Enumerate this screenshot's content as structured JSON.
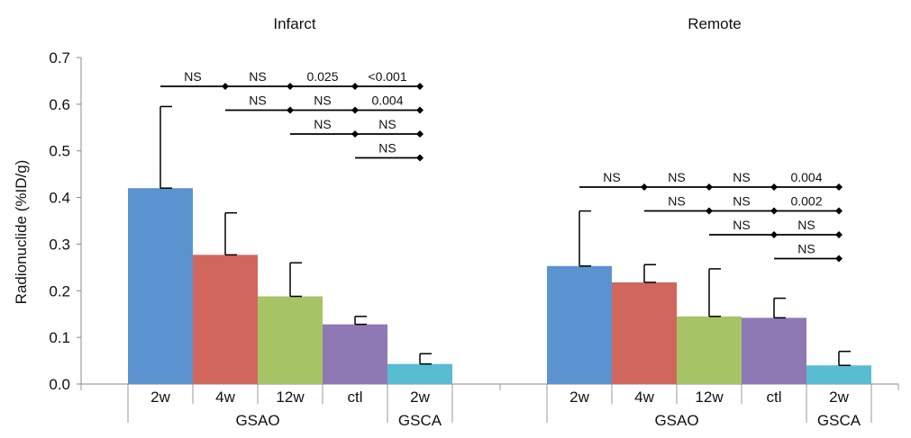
{
  "chart_data": {
    "type": "bar",
    "ylabel": "Radionuclide (%ID/g)",
    "ylim": [
      0,
      0.7
    ],
    "yticks": [
      "0.0",
      "0.1",
      "0.2",
      "0.3",
      "0.4",
      "0.5",
      "0.6",
      "0.7"
    ],
    "categories": [
      "2w",
      "4w",
      "12w",
      "ctl",
      "2w"
    ],
    "groups": [
      {
        "label": "GSAO",
        "span": [
          0,
          3
        ]
      },
      {
        "label": "GSCA",
        "span": [
          4,
          4
        ]
      }
    ],
    "bar_colors": [
      "#5b93d0",
      "#d1665c",
      "#a6c465",
      "#8f79b5",
      "#58bcd3"
    ],
    "panels": [
      {
        "title": "Infarct",
        "values": [
          0.42,
          0.277,
          0.188,
          0.128,
          0.043
        ],
        "errors": [
          0.175,
          0.09,
          0.072,
          0.017,
          0.022
        ],
        "comparisons": [
          {
            "from": 0,
            "labels": [
              "NS",
              "NS",
              "0.025",
              "<0.001"
            ]
          },
          {
            "from": 1,
            "labels": [
              "NS",
              "NS",
              "0.004"
            ]
          },
          {
            "from": 2,
            "labels": [
              "NS",
              "NS"
            ]
          },
          {
            "from": 3,
            "labels": [
              "NS"
            ]
          }
        ]
      },
      {
        "title": "Remote",
        "values": [
          0.253,
          0.218,
          0.145,
          0.142,
          0.04
        ],
        "errors": [
          0.118,
          0.038,
          0.102,
          0.042,
          0.03
        ],
        "comparisons": [
          {
            "from": 0,
            "labels": [
              "NS",
              "NS",
              "NS",
              "0.004"
            ]
          },
          {
            "from": 1,
            "labels": [
              "NS",
              "NS",
              "0.002"
            ]
          },
          {
            "from": 2,
            "labels": [
              "NS",
              "NS"
            ]
          },
          {
            "from": 3,
            "labels": [
              "NS"
            ]
          }
        ]
      }
    ]
  }
}
